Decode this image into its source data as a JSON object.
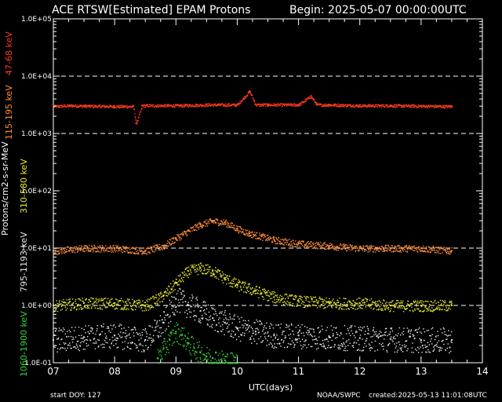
{
  "header": {
    "title": "ACE RTSW[Estimated] EPAM Protons",
    "begin": "Begin: 2025-05-07 00:00:00UTC"
  },
  "footer": {
    "start_doy": "start DOY:  127",
    "source": "NOAA/SWPC",
    "created": "created:2025-05-13 11:01:08UTC"
  },
  "chart_data": {
    "type": "scatter",
    "xlabel": "UTC(days)",
    "ylabel": "Protons/cm2-s-sr-MeV",
    "xlim": [
      7,
      14
    ],
    "ylim": [
      0.1,
      100000
    ],
    "yscale": "log",
    "x_ticks": [
      "07",
      "08",
      "09",
      "10",
      "11",
      "12",
      "13",
      "14"
    ],
    "y_ticks": [
      "1.0E-01",
      "1.0E+00",
      "1.0E+01",
      "1.0E+02",
      "1.0E+03",
      "1.0E+04",
      "1.0E+05"
    ],
    "grid_y_values": [
      1,
      10,
      1000,
      10000
    ],
    "series": [
      {
        "name": "47-68 keV",
        "color": "#ff3b1f",
        "x": [
          7.0,
          7.3,
          7.5,
          8.0,
          8.3,
          8.35,
          8.45,
          9.0,
          9.5,
          10.0,
          10.2,
          10.3,
          10.5,
          11.0,
          11.2,
          11.3,
          11.5,
          12.0,
          12.5,
          13.0,
          13.5
        ],
        "values": [
          3000,
          3100,
          3050,
          3000,
          3000,
          1500,
          3100,
          3100,
          3200,
          3200,
          5500,
          3200,
          3200,
          3200,
          4500,
          3200,
          3200,
          3100,
          3100,
          3050,
          3000
        ]
      },
      {
        "name": "115-195 keV",
        "color": "#ff8c3a",
        "x": [
          7.0,
          7.5,
          8.0,
          8.5,
          8.8,
          9.0,
          9.2,
          9.4,
          9.6,
          9.8,
          10.0,
          10.2,
          10.4,
          10.6,
          11.0,
          11.5,
          12.0,
          12.5,
          13.0,
          13.5
        ],
        "values": [
          9,
          10,
          10,
          9,
          11,
          15,
          20,
          26,
          30,
          28,
          22,
          18,
          16,
          14,
          12,
          11,
          10,
          10,
          10,
          9
        ]
      },
      {
        "name": "310-580 keV",
        "color": "#e8e830",
        "x": [
          7.0,
          7.5,
          8.0,
          8.5,
          8.8,
          9.0,
          9.2,
          9.4,
          9.6,
          9.8,
          10.0,
          10.3,
          10.6,
          11.0,
          11.5,
          12.0,
          12.5,
          13.0,
          13.5
        ],
        "values": [
          1.0,
          1.1,
          1.1,
          1.0,
          1.5,
          2.5,
          4.0,
          4.5,
          4.0,
          3.0,
          2.3,
          1.8,
          1.4,
          1.2,
          1.1,
          1.1,
          1.0,
          1.0,
          1.0
        ]
      },
      {
        "name": "795-1193 keV",
        "color": "#e6e6e6",
        "x": [
          7.0,
          7.5,
          8.0,
          8.5,
          8.8,
          9.0,
          9.2,
          9.4,
          9.6,
          9.8,
          10.0,
          10.3,
          10.6,
          11.0,
          11.5,
          12.0,
          12.5,
          13.0,
          13.5
        ],
        "values": [
          0.25,
          0.28,
          0.3,
          0.25,
          0.5,
          1.3,
          1.0,
          0.8,
          0.6,
          0.5,
          0.4,
          0.35,
          0.3,
          0.3,
          0.28,
          0.27,
          0.26,
          0.25,
          0.25
        ]
      },
      {
        "name": "1060-1900 keV",
        "color": "#33d633",
        "x": [
          8.7,
          8.8,
          8.9,
          9.0,
          9.1,
          9.2,
          9.3,
          9.4,
          9.5,
          9.6,
          9.8,
          10.0
        ],
        "values": [
          0.12,
          0.18,
          0.25,
          0.35,
          0.3,
          0.22,
          0.18,
          0.15,
          0.13,
          0.12,
          0.11,
          0.1
        ]
      }
    ]
  }
}
